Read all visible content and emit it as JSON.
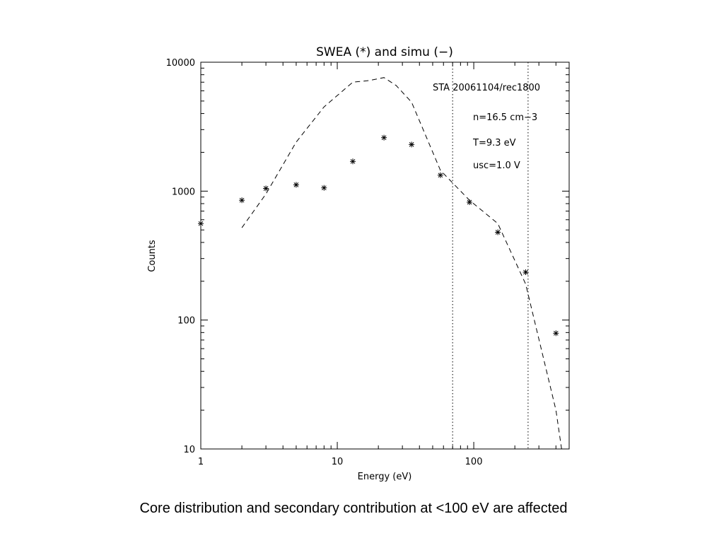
{
  "caption": "Core distribution and secondary contribution at <100 eV are affected",
  "chart_data": {
    "type": "scatter",
    "title": "SWEA (*) and simu (−)",
    "xlabel": "Energy (eV)",
    "ylabel": "Counts",
    "x_scale": "log",
    "y_scale": "log",
    "xlim": [
      1,
      500
    ],
    "ylim": [
      10,
      10000
    ],
    "x_ticks": [
      1,
      10,
      100
    ],
    "x_tick_labels": [
      "1",
      "10",
      "100"
    ],
    "y_ticks": [
      10,
      100,
      1000,
      10000
    ],
    "y_tick_labels": [
      "10",
      "100",
      "1000",
      "10000"
    ],
    "annotations": [
      "STA 20061104/rec1800",
      "n=16.5 cm−3",
      "T=9.3 eV",
      "usc=1.0 V"
    ],
    "vlines": [
      70,
      250
    ],
    "series": [
      {
        "name": "SWEA",
        "marker": "*",
        "x": [
          1.0,
          2.0,
          3.0,
          5.0,
          8.0,
          13.0,
          22.0,
          35.0,
          57.0,
          93.0,
          150.0,
          240.0,
          400.0
        ],
        "y": [
          560,
          850,
          1050,
          1120,
          1060,
          1700,
          2600,
          2300,
          1330,
          820,
          480,
          235,
          79
        ]
      },
      {
        "name": "simu",
        "line": "dashed",
        "x": [
          2.0,
          3.0,
          5.0,
          8.0,
          13.0,
          17.0,
          22.0,
          27.0,
          35.0,
          57.0,
          93.0,
          150.0,
          240.0,
          400.0,
          440.0
        ],
        "y": [
          520,
          950,
          2400,
          4500,
          7000,
          7200,
          7600,
          6600,
          4900,
          1450,
          850,
          560,
          190,
          20,
          10
        ]
      }
    ]
  }
}
